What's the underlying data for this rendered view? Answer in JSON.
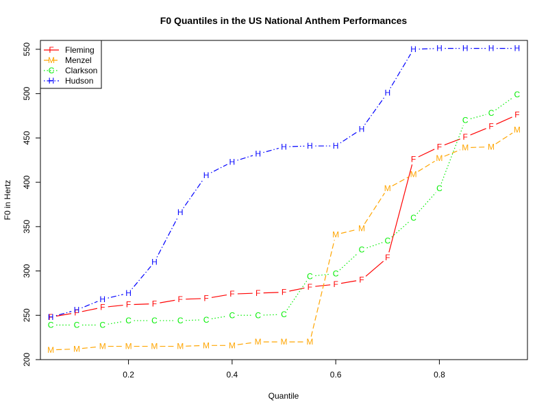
{
  "chart_data": {
    "type": "line",
    "title": "F0 Quantiles in the US National Anthem Performances",
    "xlabel": "Quantile",
    "ylabel": "F0 in Hertz",
    "xlim": [
      0.03,
      0.97
    ],
    "ylim": [
      200,
      560
    ],
    "xticks": [
      0.2,
      0.4,
      0.6,
      0.8
    ],
    "xtick_labels": [
      "0.2",
      "0.4",
      "0.6",
      "0.8"
    ],
    "yticks": [
      200,
      250,
      300,
      350,
      400,
      450,
      500,
      550
    ],
    "ytick_labels": [
      "200",
      "250",
      "300",
      "350",
      "400",
      "450",
      "500",
      "550"
    ],
    "x": [
      0.05,
      0.1,
      0.15,
      0.2,
      0.25,
      0.3,
      0.35,
      0.4,
      0.45,
      0.5,
      0.55,
      0.6,
      0.65,
      0.7,
      0.75,
      0.8,
      0.85,
      0.9,
      0.95
    ],
    "legend_position": "top-left",
    "grid": false,
    "series": [
      {
        "name": "Fleming",
        "symbol": "F",
        "color": "#ff0000",
        "line_style": "solid",
        "values": [
          248,
          253,
          259,
          262,
          263,
          268,
          269,
          274,
          275,
          276,
          282,
          285,
          290,
          315,
          426,
          440,
          451,
          463,
          476
        ]
      },
      {
        "name": "Menzel",
        "symbol": "M",
        "color": "#ffa500",
        "line_style": "dashed",
        "values": [
          211,
          212,
          215,
          215,
          215,
          215,
          216,
          216,
          220,
          220,
          220,
          341,
          348,
          393,
          409,
          427,
          439,
          440,
          459
        ]
      },
      {
        "name": "Clarkson",
        "symbol": "C",
        "color": "#00ee00",
        "line_style": "dotted",
        "values": [
          239,
          239,
          239,
          244,
          244,
          244,
          245,
          250,
          250,
          251,
          294,
          297,
          324,
          334,
          360,
          393,
          470,
          478,
          499
        ]
      },
      {
        "name": "Hudson",
        "symbol": "H",
        "color": "#0000ff",
        "line_style": "dotdash",
        "values": [
          248,
          256,
          268,
          275,
          310,
          366,
          408,
          423,
          432,
          440,
          441,
          441,
          460,
          501,
          550,
          551,
          551,
          551,
          551
        ]
      }
    ]
  }
}
